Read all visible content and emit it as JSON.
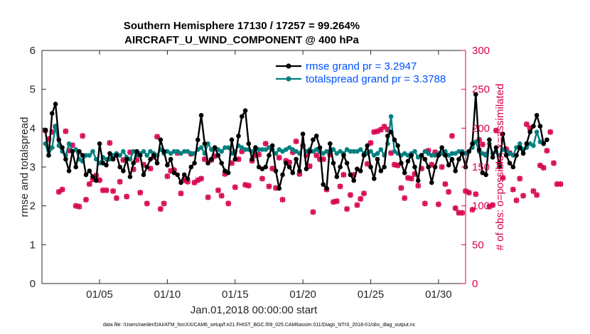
{
  "chart_data": {
    "type": "line",
    "title_line1": "Southern Hemisphere 17130 / 17257 = 99.264%",
    "title_line2": "AIRCRAFT_U_WIND_COMPONENT @ 400 hPa",
    "xlabel": "Jan.01,2018 00:00:00 start",
    "ylabel": "rmse and totalspread",
    "ylabel_right": "# of obs: o=possible; ×=assimilated",
    "footer": "data file: /Users/raeder/DAI/ATM_forcXX/CAM6_setup/f.e21.FHIST_BGC.f09_025.CAM6assim.011/Diags_NTrS_2018-01/obs_diag_output.nc",
    "xlim": [
      0.75,
      32.0
    ],
    "ylim": [
      0,
      6
    ],
    "ylim_right": [
      0,
      300
    ],
    "x_ticks": [
      5,
      10,
      15,
      20,
      25,
      30
    ],
    "x_tick_labels": [
      "01/05",
      "01/10",
      "01/15",
      "01/20",
      "01/25",
      "01/30"
    ],
    "y_ticks": [
      "0",
      "1",
      "2",
      "3",
      "4",
      "5",
      "6"
    ],
    "y_right_ticks": [
      "0",
      "50",
      "100",
      "150",
      "200",
      "250",
      "300"
    ],
    "legend": [
      {
        "name": "rmse grand pr = 3.2947",
        "color": "#000000"
      },
      {
        "name": "totalspread grand pr = 3.3788",
        "color": "#008080"
      }
    ],
    "colors": {
      "rmse": "#000000",
      "spread": "#008080",
      "obs": "#d6004e"
    },
    "step_days": 0.25,
    "start_day": 1.0,
    "series": [
      {
        "name": "rmse",
        "values": [
          3.95,
          3.3,
          4.38,
          4.62,
          3.7,
          3.5,
          3.2,
          2.9,
          3.4,
          3.0,
          3.4,
          3.3,
          2.8,
          2.9,
          2.75,
          2.65,
          3.6,
          3.1,
          3.05,
          3.35,
          3.2,
          3.3,
          3.0,
          2.9,
          3.2,
          2.75,
          3.1,
          3.4,
          3.3,
          2.8,
          3.0,
          3.2,
          3.3,
          3.1,
          3.7,
          3.4,
          3.05,
          3.2,
          2.85,
          2.8,
          2.6,
          2.8,
          2.7,
          3.0,
          3.1,
          3.7,
          4.33,
          3.6,
          3.1,
          3.2,
          3.5,
          3.3,
          3.1,
          2.9,
          2.85,
          3.7,
          3.2,
          3.8,
          4.3,
          4.45,
          3.6,
          3.2,
          3.5,
          3.0,
          2.95,
          3.0,
          3.3,
          3.55,
          2.9,
          2.45,
          2.8,
          3.1,
          3.0,
          2.85,
          3.2,
          2.9,
          3.85,
          2.95,
          3.4,
          3.7,
          3.8,
          3.5,
          2.55,
          2.45,
          3.6,
          3.1,
          2.75,
          3.0,
          3.3,
          3.1,
          2.8,
          2.65,
          2.95,
          2.9,
          3.3,
          3.55,
          3.0,
          2.7,
          3.2,
          2.9,
          3.0,
          3.8,
          3.9,
          3.7,
          3.55,
          3.1,
          2.85,
          3.15,
          3.3,
          3.0,
          2.65,
          3.3,
          3.2,
          3.0,
          2.6,
          3.0,
          3.3,
          3.5,
          3.3,
          3.05,
          3.2,
          2.9,
          3.2,
          3.35,
          3.0,
          3.4,
          3.6,
          4.87,
          3.45,
          2.85,
          2.8,
          3.7,
          3.25,
          3.5,
          3.0,
          3.85,
          3.3,
          3.1,
          3.0,
          3.3,
          3.5,
          3.35,
          3.6,
          3.9,
          4.05,
          4.33,
          4.05,
          3.6,
          3.7
        ]
      },
      {
        "name": "totalspread",
        "values": [
          3.6,
          3.3,
          3.5,
          4.05,
          3.55,
          3.4,
          3.3,
          3.6,
          3.4,
          3.45,
          3.2,
          3.15,
          3.3,
          3.3,
          3.4,
          3.2,
          3.1,
          3.25,
          3.2,
          3.2,
          3.3,
          3.35,
          3.3,
          3.4,
          3.25,
          3.2,
          3.4,
          3.3,
          3.35,
          3.4,
          3.3,
          3.4,
          3.35,
          3.3,
          3.45,
          3.35,
          3.4,
          3.35,
          3.4,
          3.4,
          3.35,
          3.4,
          3.4,
          3.35,
          3.35,
          3.45,
          3.5,
          3.35,
          3.6,
          3.45,
          3.5,
          3.45,
          3.4,
          3.5,
          3.5,
          3.35,
          3.4,
          3.55,
          3.5,
          3.45,
          3.45,
          3.4,
          3.5,
          3.45,
          3.45,
          3.45,
          3.5,
          3.45,
          3.35,
          3.45,
          3.4,
          3.45,
          3.5,
          3.45,
          3.4,
          3.35,
          3.55,
          3.4,
          3.45,
          3.4,
          3.45,
          3.4,
          3.35,
          3.4,
          3.4,
          3.45,
          3.35,
          3.4,
          3.35,
          3.45,
          3.4,
          3.4,
          3.4,
          3.45,
          3.35,
          3.35,
          3.4,
          3.3,
          3.35,
          3.45,
          3.3,
          3.6,
          4.3,
          3.4,
          3.35,
          3.3,
          3.35,
          3.3,
          3.35,
          3.4,
          3.25,
          3.3,
          3.4,
          3.35,
          3.3,
          3.3,
          3.35,
          3.35,
          3.4,
          3.3,
          3.35,
          3.35,
          3.4,
          3.4,
          3.35,
          3.4,
          3.5,
          3.65,
          3.4,
          3.35,
          3.3,
          3.6,
          3.35,
          3.4,
          3.3,
          3.45,
          3.4,
          3.35,
          3.3,
          3.5,
          3.6,
          3.45,
          3.5,
          3.6,
          3.55,
          3.9,
          3.65,
          3.6,
          3.7
        ]
      }
    ],
    "obs_series": {
      "name": "# of obs",
      "values": [
        197,
        186,
        195,
        202,
        118,
        121,
        196,
        171,
        178,
        100,
        99,
        190,
        108,
        128,
        134,
        139,
        133,
        120,
        120,
        181,
        119,
        110,
        131,
        159,
        112,
        169,
        147,
        159,
        117,
        153,
        103,
        148,
        163,
        189,
        96,
        103,
        138,
        145,
        146,
        168,
        116,
        133,
        131,
        167,
        130,
        133,
        135,
        160,
        111,
        159,
        164,
        120,
        113,
        141,
        103,
        155,
        124,
        160,
        170,
        127,
        126,
        158,
        165,
        166,
        135,
        180,
        125,
        148,
        123,
        162,
        108,
        158,
        156,
        169,
        183,
        141,
        177,
        165,
        151,
        92,
        165,
        160,
        160,
        121,
        166,
        105,
        106,
        125,
        140,
        96,
        114,
        140,
        101,
        109,
        116,
        154,
        181,
        195,
        196,
        198,
        202,
        198,
        168,
        153,
        152,
        123,
        110,
        136,
        135,
        141,
        126,
        148,
        103,
        171,
        153,
        169,
        102,
        150,
        128,
        118,
        190,
        97,
        91,
        91,
        119,
        117,
        95,
        115,
        185,
        179,
        166,
        99,
        101,
        197,
        154,
        136,
        173,
        168,
        121,
        107,
        135,
        113,
        205,
        200,
        119,
        114,
        152,
        149,
        171,
        195,
        155,
        128,
        128
      ]
    }
  }
}
